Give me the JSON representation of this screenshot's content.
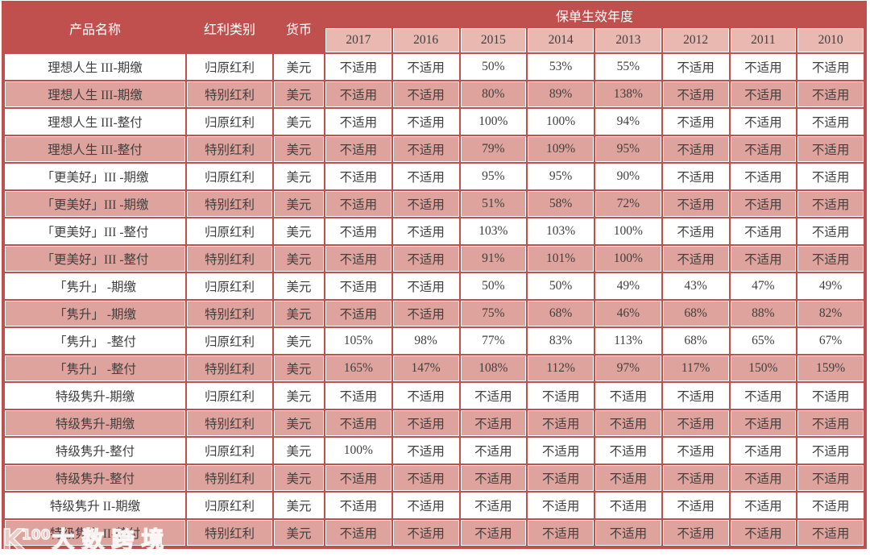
{
  "header": {
    "product": "产品名称",
    "category": "红利类别",
    "currency": "货币",
    "year_group": "保单生效年度",
    "years": [
      "2017",
      "2016",
      "2015",
      "2014",
      "2013",
      "2012",
      "2011",
      "2010"
    ]
  },
  "na_label": "不适用",
  "rows": [
    {
      "product": "理想人生 III-期缴",
      "category": "归原红利",
      "currency": "美元",
      "values": [
        "不适用",
        "不适用",
        "50%",
        "53%",
        "55%",
        "不适用",
        "不适用",
        "不适用"
      ]
    },
    {
      "product": "理想人生 III-期缴",
      "category": "特别红利",
      "currency": "美元",
      "values": [
        "不适用",
        "不适用",
        "80%",
        "89%",
        "138%",
        "不适用",
        "不适用",
        "不适用"
      ]
    },
    {
      "product": "理想人生 III-整付",
      "category": "归原红利",
      "currency": "美元",
      "values": [
        "不适用",
        "不适用",
        "100%",
        "100%",
        "94%",
        "不适用",
        "不适用",
        "不适用"
      ]
    },
    {
      "product": "理想人生 III-整付",
      "category": "特别红利",
      "currency": "美元",
      "values": [
        "不适用",
        "不适用",
        "79%",
        "109%",
        "95%",
        "不适用",
        "不适用",
        "不适用"
      ]
    },
    {
      "product": "「更美好」III -期缴",
      "category": "归原红利",
      "currency": "美元",
      "values": [
        "不适用",
        "不适用",
        "95%",
        "95%",
        "90%",
        "不适用",
        "不适用",
        "不适用"
      ]
    },
    {
      "product": "「更美好」III -期缴",
      "category": "特别红利",
      "currency": "美元",
      "values": [
        "不适用",
        "不适用",
        "51%",
        "58%",
        "72%",
        "不适用",
        "不适用",
        "不适用"
      ]
    },
    {
      "product": "「更美好」III -整付",
      "category": "归原红利",
      "currency": "美元",
      "values": [
        "不适用",
        "不适用",
        "103%",
        "103%",
        "100%",
        "不适用",
        "不适用",
        "不适用"
      ]
    },
    {
      "product": "「更美好」III -整付",
      "category": "特别红利",
      "currency": "美元",
      "values": [
        "不适用",
        "不适用",
        "91%",
        "101%",
        "100%",
        "不适用",
        "不适用",
        "不适用"
      ]
    },
    {
      "product": "「隽升」 -期缴",
      "category": "归原红利",
      "currency": "美元",
      "values": [
        "不适用",
        "不适用",
        "50%",
        "50%",
        "49%",
        "43%",
        "47%",
        "49%"
      ]
    },
    {
      "product": "「隽升」 -期缴",
      "category": "特别红利",
      "currency": "美元",
      "values": [
        "不适用",
        "不适用",
        "75%",
        "68%",
        "46%",
        "68%",
        "88%",
        "82%"
      ]
    },
    {
      "product": "「隽升」 -整付",
      "category": "归原红利",
      "currency": "美元",
      "values": [
        "105%",
        "98%",
        "77%",
        "83%",
        "113%",
        "68%",
        "65%",
        "67%"
      ]
    },
    {
      "product": "「隽升」 -整付",
      "category": "特别红利",
      "currency": "美元",
      "values": [
        "165%",
        "147%",
        "108%",
        "112%",
        "97%",
        "117%",
        "150%",
        "159%"
      ]
    },
    {
      "product": "特级隽升-期缴",
      "category": "归原红利",
      "currency": "美元",
      "values": [
        "不适用",
        "不适用",
        "不适用",
        "不适用",
        "不适用",
        "不适用",
        "不适用",
        "不适用"
      ]
    },
    {
      "product": "特级隽升-期缴",
      "category": "特别红利",
      "currency": "美元",
      "values": [
        "不适用",
        "不适用",
        "不适用",
        "不适用",
        "不适用",
        "不适用",
        "不适用",
        "不适用"
      ]
    },
    {
      "product": "特级隽升-整付",
      "category": "归原红利",
      "currency": "美元",
      "values": [
        "100%",
        "不适用",
        "不适用",
        "不适用",
        "不适用",
        "不适用",
        "不适用",
        "不适用"
      ]
    },
    {
      "product": "特级隽升-整付",
      "category": "特别红利",
      "currency": "美元",
      "values": [
        "不适用",
        "不适用",
        "不适用",
        "不适用",
        "不适用",
        "不适用",
        "不适用",
        "不适用"
      ]
    },
    {
      "product": "特级隽升 II-期缴",
      "category": "归原红利",
      "currency": "美元",
      "values": [
        "不适用",
        "不适用",
        "不适用",
        "不适用",
        "不适用",
        "不适用",
        "不适用",
        "不适用"
      ]
    },
    {
      "product": "特级隽升 II-整付",
      "category": "特别红利",
      "currency": "美元",
      "values": [
        "不适用",
        "不适用",
        "不适用",
        "不适用",
        "不适用",
        "不适用",
        "不适用",
        "不适用"
      ]
    }
  ],
  "watermark": {
    "logo": "K",
    "logo_sup": "100",
    "text": "大数跨境"
  },
  "colors": {
    "table_red": "#c0504d",
    "year_cell_pink": "#e9b8b1",
    "alt_row_pink": "#dea39c",
    "row_white": "#ffffff",
    "body_text": "#3f3f3f",
    "header_text": "#ffffff"
  }
}
